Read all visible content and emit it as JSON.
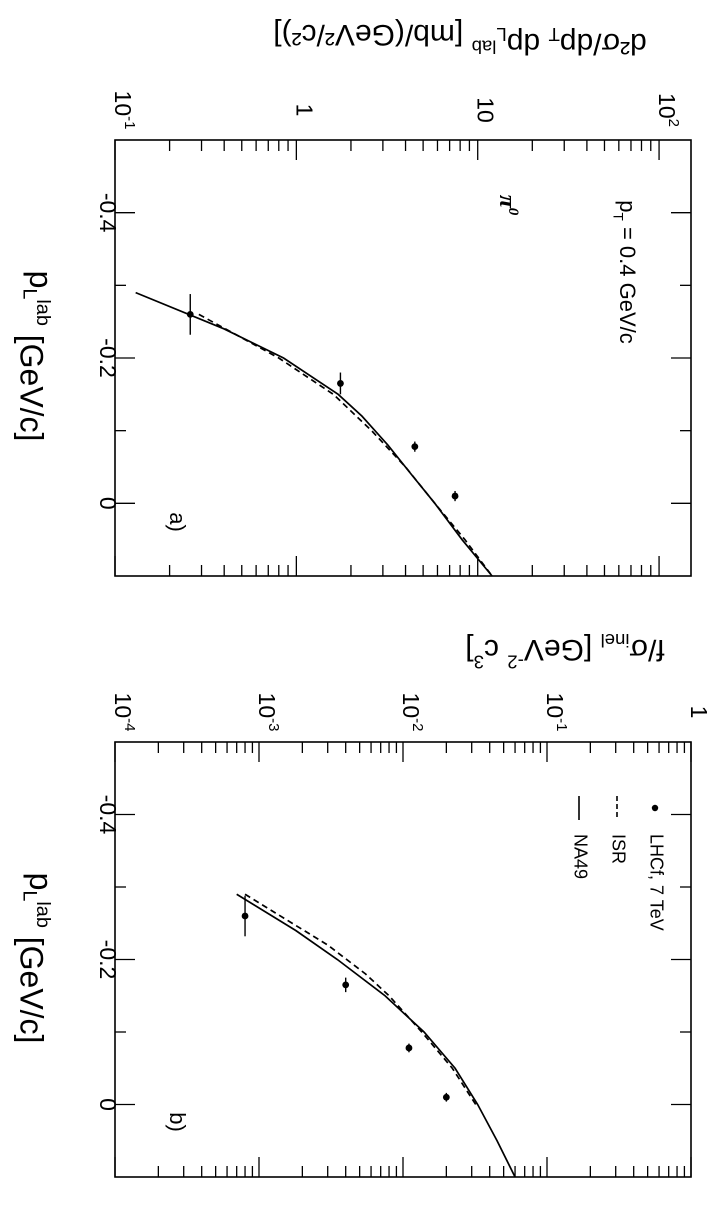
{
  "chart_data": [
    {
      "type": "line",
      "panel_label": "a)",
      "ylabel": "d²σ/dp_T dp_L^lab [mb/(GeV²/c²)]",
      "xlabel": "p_L^lab [GeV/c]",
      "xlim": [
        -0.5,
        0.1
      ],
      "ylim": [
        0.1,
        150
      ],
      "yscale": "log",
      "x_ticks": [
        -0.4,
        -0.2,
        0
      ],
      "x_tick_labels": [
        "-0.4",
        "-0.2",
        "0"
      ],
      "y_ticks": [
        0.1,
        1,
        10,
        100
      ],
      "y_tick_labels": [
        "10^-1",
        "1",
        "10",
        "10^2"
      ],
      "annotations": [
        "p_T = 0.4 GeV/c",
        "π^0"
      ],
      "series": [
        {
          "style": "points",
          "x": [
            -0.26,
            -0.165,
            -0.078,
            -0.01
          ],
          "y": [
            0.26,
            1.75,
            4.5,
            7.5
          ],
          "x_err": [
            0.028,
            0.015,
            0.007,
            0.007
          ]
        },
        {
          "style": "dashed",
          "x": [
            -0.26,
            -0.2,
            -0.15,
            -0.1,
            -0.05,
            0.0,
            0.05,
            0.1
          ],
          "y": [
            0.29,
            0.8,
            1.6,
            2.6,
            4.0,
            5.8,
            8.5,
            12.0
          ]
        },
        {
          "style": "solid",
          "x": [
            -0.29,
            -0.24,
            -0.2,
            -0.15,
            -0.12,
            -0.08,
            -0.04,
            0.0,
            0.05,
            0.1
          ],
          "y": [
            0.13,
            0.4,
            0.85,
            1.7,
            2.3,
            3.2,
            4.3,
            5.8,
            8.2,
            12.0
          ]
        }
      ]
    },
    {
      "type": "line",
      "panel_label": "b)",
      "ylabel": "f/σ_inel [GeV^-2 c^3]",
      "xlabel": "p_L^lab [GeV/c]",
      "xlim": [
        -0.5,
        0.1
      ],
      "ylim": [
        0.0001,
        1
      ],
      "yscale": "log",
      "x_ticks": [
        -0.4,
        -0.2,
        0
      ],
      "x_tick_labels": [
        "-0.4",
        "-0.2",
        "0"
      ],
      "y_ticks": [
        0.0001,
        0.001,
        0.01,
        0.1,
        1
      ],
      "y_tick_labels": [
        "10^-4",
        "10^-3",
        "10^-2",
        "10^-1",
        "1"
      ],
      "series": [
        {
          "name": "LHCf, 7 TeV",
          "style": "points",
          "x": [
            -0.26,
            -0.165,
            -0.078,
            -0.01
          ],
          "y": [
            0.0008,
            0.004,
            0.011,
            0.02
          ],
          "x_err": [
            0.028,
            0.01,
            0.006,
            0.006
          ]
        },
        {
          "name": "ISR",
          "style": "dashed",
          "x": [
            -0.29,
            -0.25,
            -0.22,
            -0.18,
            -0.15,
            -0.1,
            -0.05,
            0.0
          ],
          "y": [
            0.0008,
            0.0017,
            0.003,
            0.0055,
            0.008,
            0.0135,
            0.022,
            0.032
          ]
        },
        {
          "name": "NA49",
          "style": "solid",
          "x": [
            -0.29,
            -0.24,
            -0.2,
            -0.15,
            -0.1,
            -0.05,
            0.0,
            0.05,
            0.1
          ],
          "y": [
            0.0007,
            0.0018,
            0.0035,
            0.0075,
            0.014,
            0.023,
            0.033,
            0.045,
            0.06
          ]
        }
      ]
    }
  ]
}
